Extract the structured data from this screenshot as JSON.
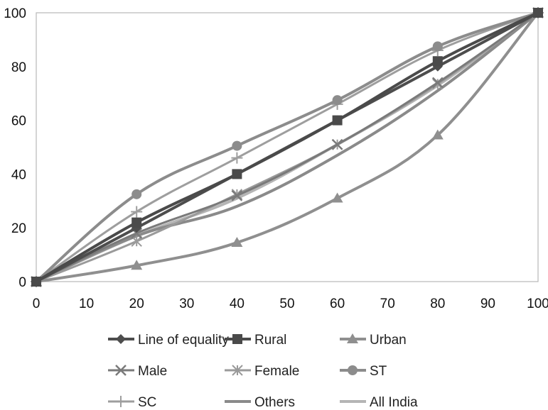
{
  "chart_data": {
    "type": "line",
    "title": "",
    "xlabel": "",
    "ylabel": "",
    "xlim": [
      0,
      100
    ],
    "ylim": [
      0,
      100
    ],
    "x_ticks": [
      0,
      10,
      20,
      30,
      40,
      50,
      60,
      70,
      80,
      90,
      100
    ],
    "y_ticks": [
      0,
      20,
      40,
      60,
      80,
      100
    ],
    "grid": false,
    "legend_position": "bottom",
    "smooth": true,
    "x": [
      0,
      20,
      40,
      60,
      80,
      100
    ],
    "series": [
      {
        "name": "Line of equality",
        "values": [
          0,
          20,
          40,
          60,
          80,
          100
        ],
        "color": "#4d4d4d",
        "marker": "diamond",
        "width": 4
      },
      {
        "name": "Rural",
        "values": [
          0,
          22,
          40,
          60,
          82,
          100
        ],
        "color": "#4a4a4a",
        "marker": "square",
        "width": 4
      },
      {
        "name": "Urban",
        "values": [
          0,
          6,
          14.5,
          31,
          54.5,
          100
        ],
        "color": "#8f8f8f",
        "marker": "triangle",
        "width": 4
      },
      {
        "name": "Male",
        "values": [
          0,
          18,
          32,
          51,
          74,
          100
        ],
        "color": "#7a7a7a",
        "marker": "x",
        "width": 3
      },
      {
        "name": "Female",
        "values": [
          0,
          15,
          32.5,
          51,
          73.5,
          100
        ],
        "color": "#9a9a9a",
        "marker": "asterisk",
        "width": 3
      },
      {
        "name": "ST",
        "values": [
          0,
          32.5,
          50.5,
          67.5,
          87.5,
          100
        ],
        "color": "#8c8c8c",
        "marker": "circle",
        "width": 4
      },
      {
        "name": "SC",
        "values": [
          0,
          26,
          46,
          66,
          86,
          100
        ],
        "color": "#9e9e9e",
        "marker": "plus",
        "width": 3
      },
      {
        "name": "Others",
        "values": [
          0,
          17,
          28,
          47,
          71,
          100
        ],
        "color": "#8a8a8a",
        "marker": "none",
        "width": 4
      },
      {
        "name": "All India",
        "values": [
          0,
          17,
          31,
          51,
          73,
          100
        ],
        "color": "#b5b5b5",
        "marker": "none",
        "width": 4
      }
    ]
  }
}
